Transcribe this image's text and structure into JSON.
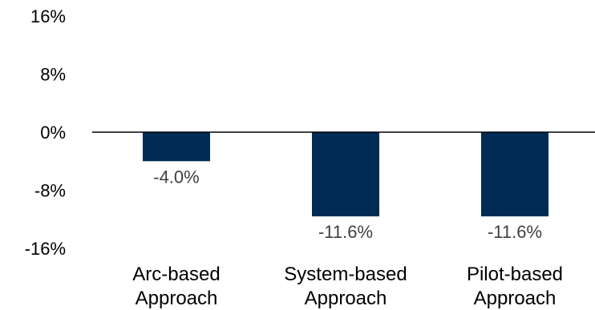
{
  "chart_data": {
    "type": "bar",
    "categories": [
      [
        "Arc-based",
        "Approach"
      ],
      [
        "System-based",
        "Approach"
      ],
      [
        "Pilot-based",
        "Approach"
      ]
    ],
    "values": [
      -4.0,
      -11.6,
      -11.6
    ],
    "data_labels": [
      "-4.0%",
      "-11.6%",
      "-11.6%"
    ],
    "y_ticks": [
      {
        "value": 16,
        "label": "16%"
      },
      {
        "value": 8,
        "label": "8%"
      },
      {
        "value": 0,
        "label": "0%"
      },
      {
        "value": -8,
        "label": "-8%"
      },
      {
        "value": -16,
        "label": "-16%"
      }
    ],
    "ylim": [
      -16,
      16
    ],
    "grid": false,
    "bar_color": "#002b55",
    "title": "",
    "xlabel": "",
    "ylabel": ""
  }
}
